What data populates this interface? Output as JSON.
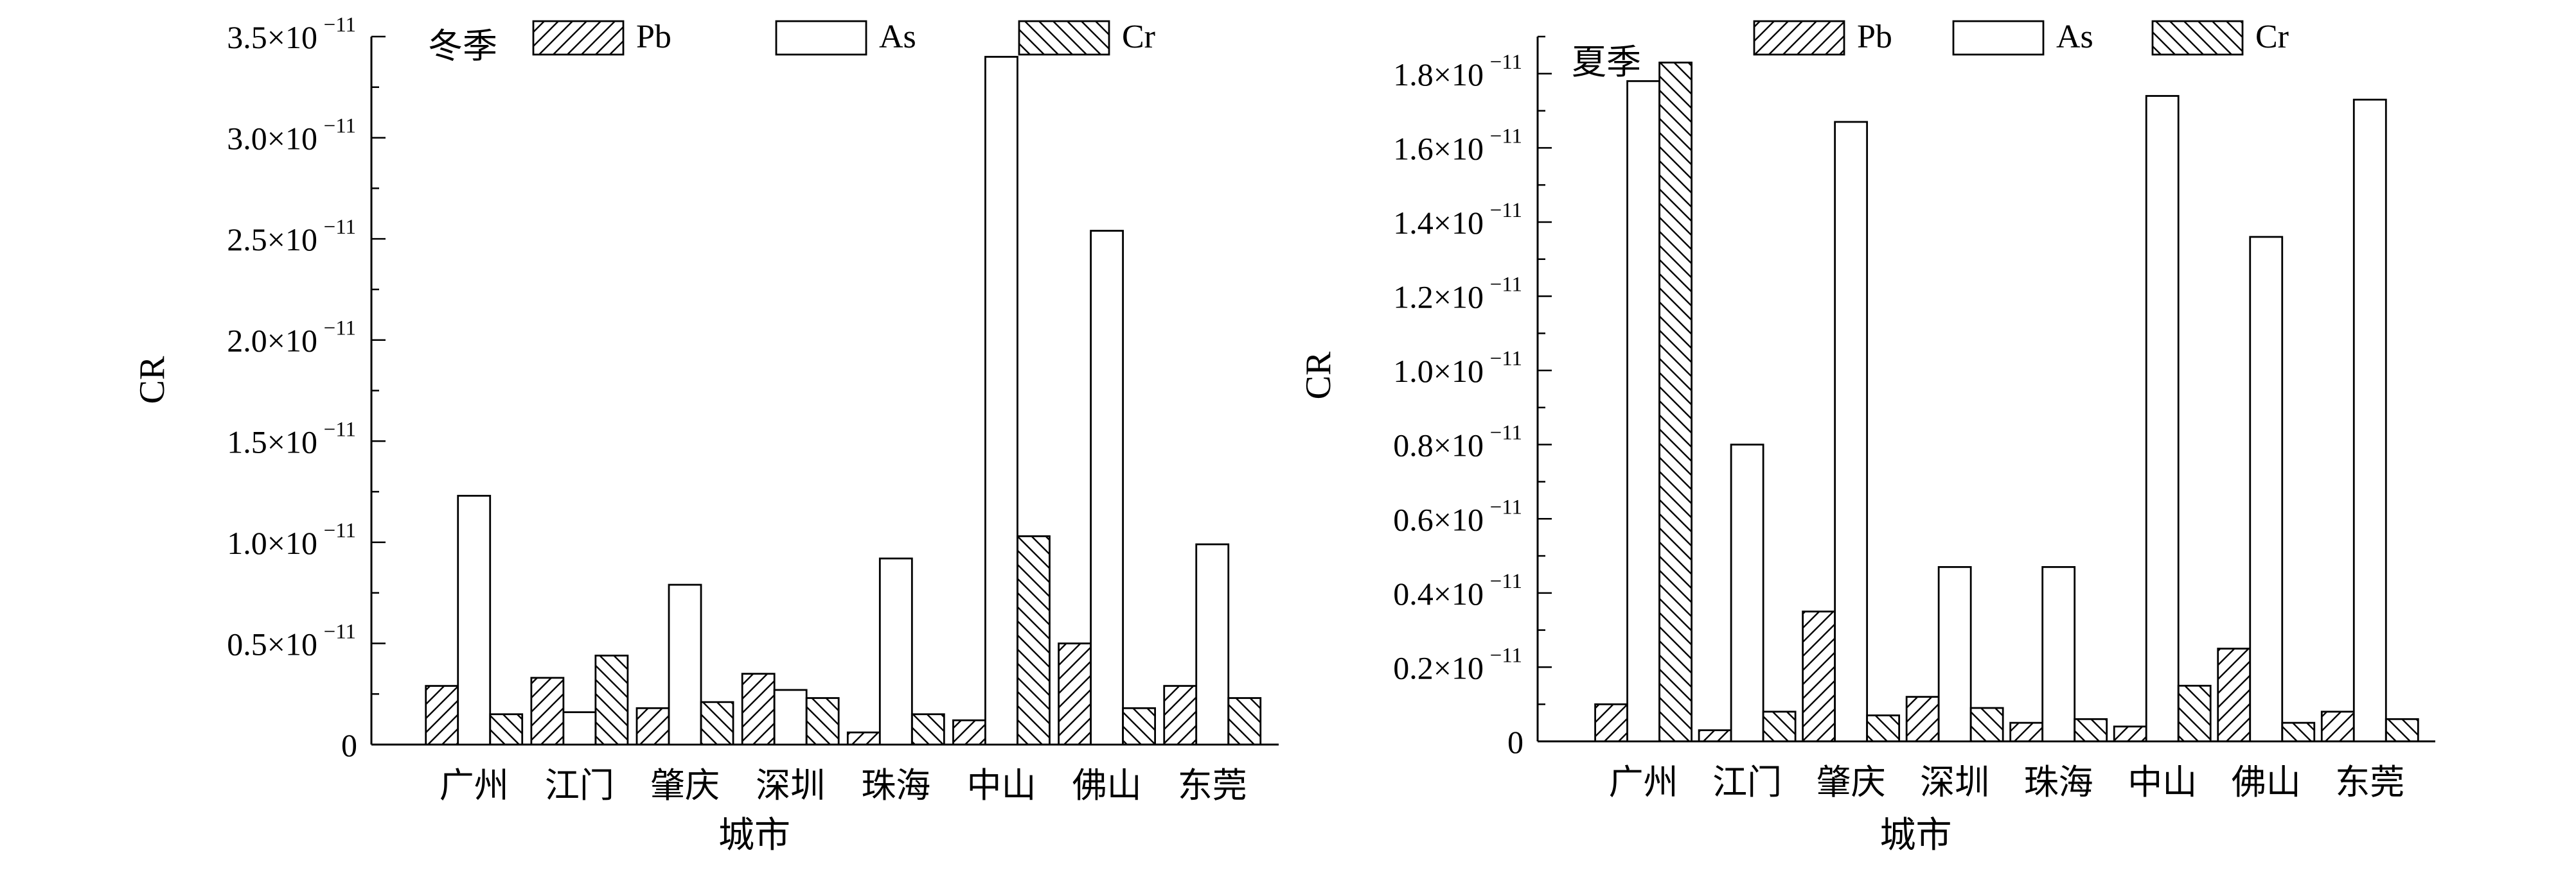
{
  "chart_data": [
    {
      "type": "bar",
      "annotation": "冬季",
      "xlabel": "城市",
      "ylabel": "CR",
      "categories": [
        "广州",
        "江门",
        "肇庆",
        "深圳",
        "珠海",
        "中山",
        "佛山",
        "东莞"
      ],
      "series": [
        {
          "name": "Pb",
          "pattern": "hatch-forward",
          "values": [
            0.29,
            0.33,
            0.18,
            0.35,
            0.06,
            0.12,
            0.5,
            0.29
          ]
        },
        {
          "name": "As",
          "pattern": "none",
          "values": [
            1.23,
            0.16,
            0.79,
            0.27,
            0.92,
            3.4,
            2.54,
            0.99
          ]
        },
        {
          "name": "Cr",
          "pattern": "hatch-back",
          "values": [
            0.15,
            0.44,
            0.21,
            0.23,
            0.15,
            1.03,
            0.18,
            0.23
          ]
        }
      ],
      "ylim": [
        0,
        3.5
      ],
      "yticks": [
        {
          "value": 0,
          "label": "0"
        },
        {
          "value": 0.5,
          "label": "0.5×10",
          "exp": "−11"
        },
        {
          "value": 1.0,
          "label": "1.0×10",
          "exp": "−11"
        },
        {
          "value": 1.5,
          "label": "1.5×10",
          "exp": "−11"
        },
        {
          "value": 2.0,
          "label": "2.0×10",
          "exp": "−11"
        },
        {
          "value": 2.5,
          "label": "2.5×10",
          "exp": "−11"
        },
        {
          "value": 3.0,
          "label": "3.0×10",
          "exp": "−11"
        },
        {
          "value": 3.5,
          "label": "3.5×10",
          "exp": "−11"
        }
      ],
      "unit_scale": "×10^−11",
      "legend": "top",
      "grid": false
    },
    {
      "type": "bar",
      "annotation": "夏季",
      "xlabel": "城市",
      "ylabel": "CR",
      "categories": [
        "广州",
        "江门",
        "肇庆",
        "深圳",
        "珠海",
        "中山",
        "佛山",
        "东莞"
      ],
      "series": [
        {
          "name": "Pb",
          "pattern": "hatch-forward",
          "values": [
            0.1,
            0.03,
            0.35,
            0.12,
            0.05,
            0.04,
            0.25,
            0.08
          ]
        },
        {
          "name": "As",
          "pattern": "none",
          "values": [
            1.78,
            0.8,
            1.67,
            0.47,
            0.47,
            1.74,
            1.36,
            1.73
          ]
        },
        {
          "name": "Cr",
          "pattern": "hatch-back",
          "values": [
            1.83,
            0.08,
            0.07,
            0.09,
            0.06,
            0.15,
            0.05,
            0.06
          ]
        }
      ],
      "ylim": [
        0,
        1.9
      ],
      "yticks": [
        {
          "value": 0,
          "label": "0"
        },
        {
          "value": 0.2,
          "label": "0.2×10",
          "exp": "−11"
        },
        {
          "value": 0.4,
          "label": "0.4×10",
          "exp": "−11"
        },
        {
          "value": 0.6,
          "label": "0.6×10",
          "exp": "−11"
        },
        {
          "value": 0.8,
          "label": "0.8×10",
          "exp": "−11"
        },
        {
          "value": 1.0,
          "label": "1.0×10",
          "exp": "−11"
        },
        {
          "value": 1.2,
          "label": "1.2×10",
          "exp": "−11"
        },
        {
          "value": 1.4,
          "label": "1.4×10",
          "exp": "−11"
        },
        {
          "value": 1.6,
          "label": "1.6×10",
          "exp": "−11"
        },
        {
          "value": 1.8,
          "label": "1.8×10",
          "exp": "−11"
        }
      ],
      "unit_scale": "×10^−11",
      "legend": "top",
      "grid": false
    }
  ]
}
